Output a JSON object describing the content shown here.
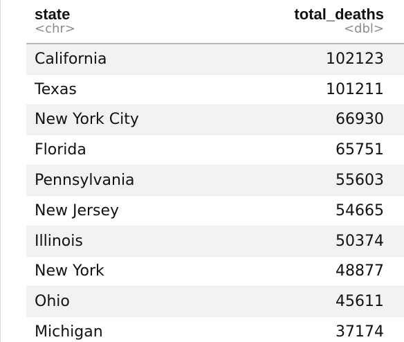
{
  "table": {
    "columns": [
      {
        "name": "state",
        "type": "<chr>"
      },
      {
        "name": "total_deaths",
        "type": "<dbl>"
      }
    ],
    "rows": [
      {
        "state": "California",
        "total_deaths": "102123"
      },
      {
        "state": "Texas",
        "total_deaths": "101211"
      },
      {
        "state": "New York City",
        "total_deaths": "66930"
      },
      {
        "state": "Florida",
        "total_deaths": "65751"
      },
      {
        "state": "Pennsylvania",
        "total_deaths": "55603"
      },
      {
        "state": "New Jersey",
        "total_deaths": "54665"
      },
      {
        "state": "Illinois",
        "total_deaths": "50374"
      },
      {
        "state": "New York",
        "total_deaths": "48877"
      },
      {
        "state": "Ohio",
        "total_deaths": "45611"
      },
      {
        "state": "Michigan",
        "total_deaths": "37174"
      }
    ]
  }
}
